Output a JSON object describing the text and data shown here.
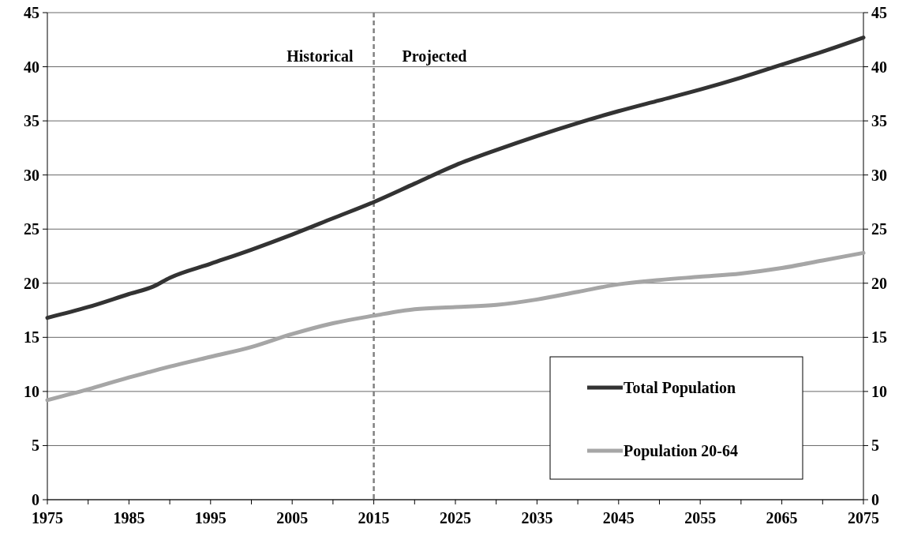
{
  "chart_data": {
    "type": "line",
    "x": [
      1975,
      1980,
      1985,
      1988,
      1990,
      1995,
      2000,
      2005,
      2010,
      2015,
      2020,
      2025,
      2030,
      2035,
      2040,
      2045,
      2050,
      2055,
      2060,
      2065,
      2070,
      2075
    ],
    "series": [
      {
        "name": "Total Population",
        "color": "#333333",
        "values": [
          16.8,
          17.8,
          19.0,
          19.7,
          20.5,
          21.8,
          23.1,
          24.5,
          26.0,
          27.5,
          29.2,
          30.9,
          32.3,
          33.6,
          34.8,
          35.9,
          36.9,
          37.9,
          39.0,
          40.2,
          41.4,
          42.7
        ]
      },
      {
        "name": "Population 20-64",
        "color": "#a6a6a6",
        "values": [
          9.2,
          10.2,
          11.3,
          11.9,
          12.3,
          13.2,
          14.1,
          15.3,
          16.3,
          17.0,
          17.6,
          17.8,
          18.0,
          18.5,
          19.2,
          19.9,
          20.3,
          20.6,
          20.9,
          21.4,
          22.1,
          22.8
        ]
      }
    ],
    "xlim": [
      1975,
      2075
    ],
    "xticks": [
      1975,
      {
        "value": 1980,
        "label": null
      },
      1985,
      {
        "value": 1990,
        "label": null
      },
      1995,
      {
        "value": 2000,
        "label": null
      },
      2005,
      {
        "value": 2010,
        "label": null
      },
      2015,
      {
        "value": 2020,
        "label": null
      },
      2025,
      {
        "value": 2030,
        "label": null
      },
      2035,
      {
        "value": 2040,
        "label": null
      },
      2045,
      {
        "value": 2050,
        "label": null
      },
      2055,
      {
        "value": 2060,
        "label": null
      },
      2065,
      {
        "value": 2070,
        "label": null
      },
      2075
    ],
    "ylim": [
      0,
      45
    ],
    "yticks": [
      0,
      5,
      10,
      15,
      20,
      25,
      30,
      35,
      40,
      45
    ],
    "y2lim": [
      0,
      45
    ],
    "y2ticks": [
      0,
      5,
      10,
      15,
      20,
      25,
      30,
      35,
      40,
      45
    ],
    "ref_lines": [
      {
        "axis": "x",
        "value": 2015,
        "color": "#808080",
        "line_style": "dashed"
      }
    ],
    "annotations": [
      "Historical",
      "Projected"
    ],
    "grid": "y",
    "legend": "bottom right",
    "marker": "none",
    "line_style": "solid"
  }
}
